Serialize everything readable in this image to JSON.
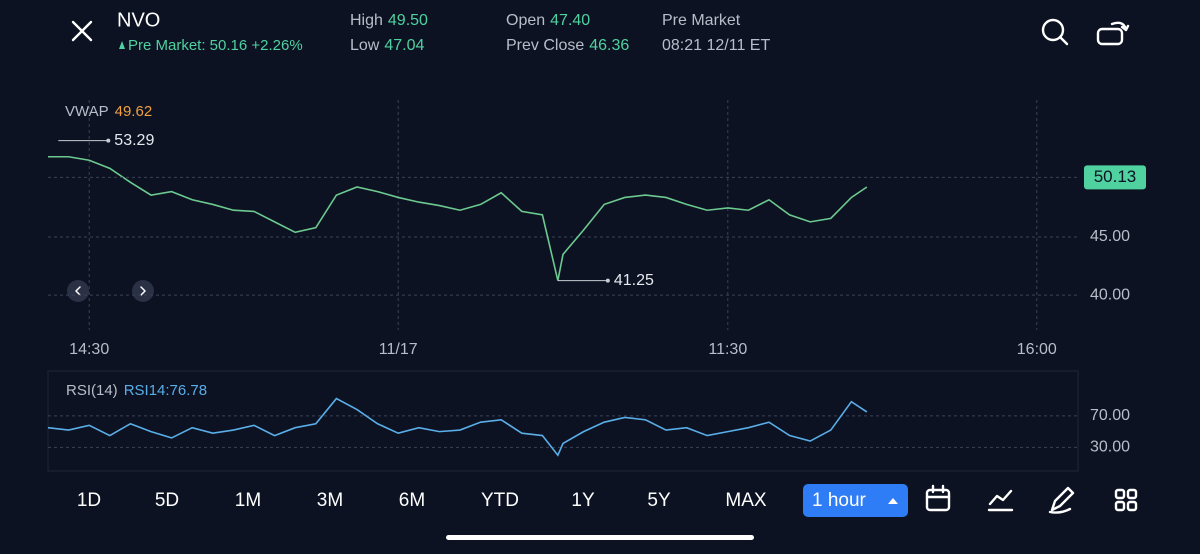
{
  "header": {
    "symbol": "NVO",
    "pre_market_status": "Pre Market: 50.16 +2.26%",
    "stats": [
      {
        "label": "High",
        "value": "49.50"
      },
      {
        "label": "Low",
        "value": "47.04"
      },
      {
        "label": "Open",
        "value": "47.40"
      },
      {
        "label": "Prev Close",
        "value": "46.36"
      }
    ],
    "session": "Pre Market",
    "timestamp": "08:21 12/11 ET"
  },
  "chart_data": [
    {
      "type": "line",
      "indicator_label": "VWAP",
      "indicator_value": "49.62",
      "color": "#6cc98f",
      "x": [
        0,
        2,
        4,
        6,
        8,
        10,
        12,
        14,
        16,
        18,
        20,
        22,
        24,
        26,
        28,
        30,
        32,
        34,
        36,
        38,
        40,
        42,
        44,
        46,
        48,
        49.5,
        50,
        52,
        54,
        56,
        58,
        60,
        62,
        64,
        66,
        68,
        70,
        72,
        74,
        76,
        78,
        79.5
      ],
      "values": [
        51.9,
        51.9,
        51.6,
        50.9,
        49.7,
        48.6,
        48.9,
        48.2,
        47.8,
        47.3,
        47.2,
        46.3,
        45.4,
        45.8,
        48.6,
        49.3,
        48.9,
        48.4,
        48.0,
        47.7,
        47.3,
        47.8,
        48.8,
        47.2,
        46.9,
        41.25,
        43.5,
        45.6,
        47.8,
        48.4,
        48.6,
        48.4,
        47.8,
        47.3,
        47.5,
        47.3,
        48.2,
        46.9,
        46.3,
        46.6,
        48.4,
        49.3
      ],
      "xlim": [
        0,
        100
      ],
      "xticks": [
        {
          "value": 4,
          "label": "14:30"
        },
        {
          "value": 34,
          "label": "11/17"
        },
        {
          "value": 66,
          "label": "11:30"
        },
        {
          "value": 96,
          "label": "16:00"
        }
      ],
      "ylim": [
        37,
        54.2
      ],
      "yticks": [
        {
          "value": 40,
          "label": "40.00"
        },
        {
          "value": 45,
          "label": "45.00"
        }
      ],
      "last_price": {
        "value": 50.13,
        "label": "50.13"
      },
      "high": {
        "x": 1,
        "value": 53.29,
        "label": "53.29"
      },
      "low": {
        "x": 49.5,
        "value": 41.25,
        "label": "41.25"
      }
    },
    {
      "type": "line",
      "indicator_label": "RSI(14)",
      "indicator_value": "RSI14:76.78",
      "color": "#5aaee8",
      "x": [
        0,
        2,
        4,
        6,
        8,
        10,
        12,
        14,
        16,
        18,
        20,
        22,
        24,
        26,
        28,
        30,
        32,
        34,
        36,
        38,
        40,
        42,
        44,
        46,
        48,
        49.5,
        50,
        52,
        54,
        56,
        58,
        60,
        62,
        64,
        66,
        68,
        70,
        72,
        74,
        76,
        78,
        79.5
      ],
      "values": [
        55,
        52,
        58,
        45,
        60,
        50,
        42,
        55,
        48,
        52,
        58,
        45,
        55,
        60,
        92,
        78,
        60,
        48,
        55,
        50,
        52,
        62,
        65,
        48,
        45,
        20,
        35,
        50,
        62,
        68,
        65,
        52,
        55,
        45,
        50,
        55,
        62,
        45,
        38,
        52,
        88,
        75
      ],
      "xlim": [
        0,
        100
      ],
      "ylim": [
        0,
        127
      ],
      "yticks": [
        {
          "value": 70,
          "label": "70.00"
        },
        {
          "value": 30,
          "label": "30.00"
        }
      ]
    }
  ],
  "range_buttons": [
    "1D",
    "5D",
    "1M",
    "3M",
    "6M",
    "YTD",
    "1Y",
    "5Y",
    "MAX"
  ],
  "interval": "1 hour"
}
